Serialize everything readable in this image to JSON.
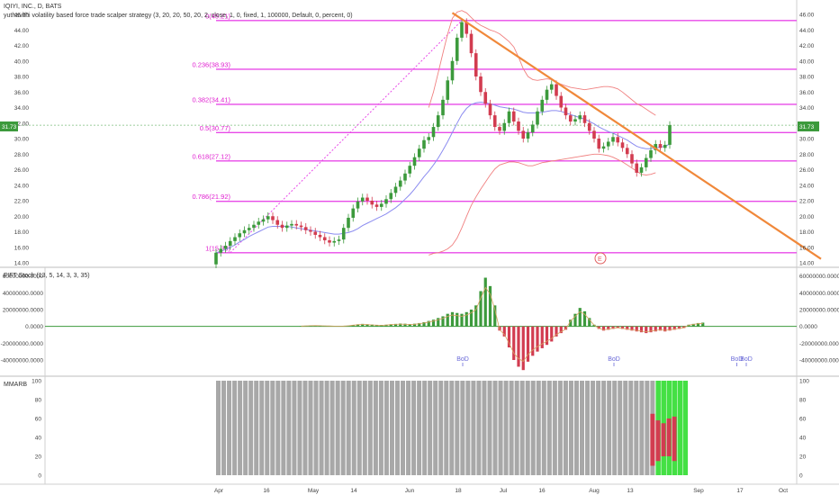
{
  "header": {
    "title": "IQIYI, INC., D, BATS",
    "strategy": "yuthavithi volatility based force trade scalper strategy (3, 20, 20, 50, 20, 2, close, 1, 0, fixed, 1, 100000, Default, 0, percent, 0)"
  },
  "price_badge": "31.73",
  "fib_labels": [
    "0(45.21)",
    "0.236(38.93)",
    "0.382(34.41)",
    "0.5(30.77)",
    "0.618(27.12)",
    "0.786(21.92)",
    "1(15.30)"
  ],
  "event_label": "E",
  "stoch_title": "FIFT Stoch (13, 5, 14, 3, 3, 35)",
  "mmarb_title": "MMARB",
  "bod_labels": [
    "BoD",
    "BoD",
    "BoD",
    "BoD"
  ],
  "colors": {
    "up": "#3c9a3c",
    "down": "#d23c50",
    "fib": "#e84ae8",
    "trend": "#f0883a",
    "ma": "#8c8cf0",
    "band": "#f08080",
    "green_zone": "#44e044",
    "gray_bar": "#a8a8a8"
  },
  "chart_data": [
    {
      "type": "candlestick",
      "title": "IQIYI, INC., D, BATS",
      "x_ticks": [
        "Apr",
        "16",
        "May",
        "14",
        "Jun",
        "18",
        "Jul",
        "16",
        "Aug",
        "13",
        "Sep",
        "17",
        "Oct"
      ],
      "y_ticks": [
        "14.00",
        "16.00",
        "18.00",
        "20.00",
        "22.00",
        "24.00",
        "26.00",
        "28.00",
        "30.00",
        "32.00",
        "34.00",
        "36.00",
        "38.00",
        "40.00",
        "42.00",
        "44.00",
        "46.00"
      ],
      "ylim": [
        14,
        46
      ],
      "fib_levels": [
        45.21,
        38.93,
        34.41,
        30.77,
        27.12,
        21.92,
        15.3
      ],
      "last_price": 31.73,
      "close": [
        15.3,
        15.8,
        16.2,
        16.8,
        17.3,
        17.8,
        18.2,
        18.5,
        18.9,
        19.3,
        19.6,
        20.0,
        19.5,
        18.9,
        18.5,
        18.8,
        19.0,
        18.8,
        18.6,
        18.2,
        18.0,
        17.6,
        17.3,
        16.9,
        16.6,
        16.8,
        17.0,
        18.5,
        19.8,
        21.0,
        21.9,
        22.4,
        22.0,
        21.5,
        21.2,
        21.6,
        22.2,
        23.0,
        23.8,
        24.6,
        25.5,
        26.5,
        27.6,
        28.7,
        29.8,
        30.2,
        31.5,
        33.0,
        35.0,
        37.5,
        40.0,
        43.0,
        45.0,
        43.5,
        41.0,
        38.0,
        36.0,
        34.5,
        33.0,
        31.5,
        31.0,
        32.0,
        33.5,
        32.2,
        31.0,
        30.0,
        30.8,
        31.8,
        33.5,
        35.0,
        36.3,
        37.0,
        35.5,
        34.0,
        33.0,
        32.2,
        32.5,
        33.0,
        32.0,
        31.0,
        30.0,
        28.7,
        29.0,
        29.6,
        30.2,
        29.5,
        28.8,
        28.0,
        26.8,
        25.6,
        26.3,
        27.5,
        28.5,
        29.3,
        28.8,
        29.2,
        31.73
      ],
      "ma": [
        15.3,
        15.5,
        15.7,
        16.0,
        16.3,
        16.7,
        17.0,
        17.4,
        17.7,
        18.0,
        18.3,
        18.6,
        18.7,
        18.7,
        18.7,
        18.7,
        18.6,
        18.5,
        18.4,
        18.3,
        18.2,
        18.1,
        18.0,
        17.9,
        17.8,
        17.7,
        17.7,
        17.8,
        17.9,
        18.1,
        18.4,
        18.8,
        19.1,
        19.4,
        19.7,
        20.0,
        20.3,
        20.7,
        21.1,
        21.6,
        22.2,
        22.8,
        23.5,
        24.3,
        25.1,
        25.8,
        26.6,
        27.5,
        28.5,
        29.6,
        30.8,
        32.0,
        33.1,
        33.9,
        34.4,
        34.6,
        34.7,
        34.6,
        34.5,
        34.3,
        34.1,
        34.0,
        33.9,
        33.8,
        33.6,
        33.4,
        33.3,
        33.3,
        33.3,
        33.4,
        33.5,
        33.6,
        33.6,
        33.5,
        33.3,
        33.1,
        32.9,
        32.7,
        32.5,
        32.2,
        31.9,
        31.5,
        31.2,
        30.9,
        30.7,
        30.4,
        30.1,
        29.8,
        29.4,
        29.0,
        28.8,
        28.7,
        28.7,
        28.8,
        28.9,
        29.0,
        29.3
      ],
      "bollinger_upper": [
        null,
        null,
        null,
        null,
        null,
        null,
        null,
        null,
        null,
        null,
        null,
        null,
        null,
        null,
        null,
        null,
        null,
        null,
        null,
        null,
        null,
        null,
        null,
        null,
        null,
        null,
        null,
        null,
        null,
        null,
        null,
        null,
        null,
        null,
        null,
        null,
        null,
        null,
        null,
        null,
        null,
        null,
        null,
        null,
        null,
        34.0,
        36.0,
        38.5,
        41.0,
        43.5,
        45.5,
        46.3,
        46.5,
        46.2,
        45.6,
        45.0,
        44.6,
        44.3,
        44.0,
        43.8,
        43.5,
        43.0,
        42.5,
        41.8,
        40.5,
        39.0,
        38.0,
        37.6,
        37.5,
        37.6,
        37.7,
        37.6,
        37.3,
        37.0,
        36.8,
        36.6,
        36.5,
        36.4,
        36.3,
        36.4,
        36.5,
        36.6,
        36.7,
        36.7,
        36.6,
        36.4,
        36.0,
        35.5,
        35.0,
        34.5,
        34.2,
        33.8,
        33.4,
        33.0,
        null,
        null,
        null
      ],
      "bollinger_lower": [
        null,
        null,
        null,
        null,
        null,
        null,
        null,
        null,
        null,
        null,
        null,
        null,
        null,
        null,
        null,
        null,
        null,
        null,
        null,
        null,
        null,
        null,
        null,
        null,
        null,
        null,
        null,
        null,
        null,
        null,
        null,
        null,
        null,
        null,
        null,
        null,
        null,
        null,
        null,
        null,
        null,
        null,
        null,
        null,
        null,
        15.0,
        15.2,
        15.3,
        15.5,
        15.8,
        16.3,
        17.2,
        18.5,
        20.0,
        21.4,
        22.5,
        23.5,
        24.4,
        25.3,
        26.1,
        26.6,
        26.8,
        27.0,
        27.0,
        26.9,
        26.7,
        26.5,
        26.5,
        26.7,
        26.9,
        27.0,
        27.1,
        27.2,
        27.3,
        27.4,
        27.5,
        27.6,
        27.7,
        27.8,
        27.9,
        28.0,
        28.0,
        27.9,
        27.8,
        27.6,
        27.3,
        27.0,
        26.6,
        26.2,
        25.8,
        25.4,
        25.3,
        25.4,
        25.6,
        null,
        null,
        null
      ],
      "trendline": [
        [
          50,
          46.2
        ],
        [
          128,
          14.5
        ]
      ],
      "xlim": [
        0,
        130
      ]
    },
    {
      "type": "bar",
      "title": "FIFT Stoch (13, 5, 14, 3, 3, 35)",
      "y_ticks": [
        "60000000.0000",
        "40000000.0000",
        "20000000.0000",
        "0.0000",
        "-20000000.0000",
        "-40000000.0000"
      ],
      "ylim": [
        -55000000,
        65000000
      ],
      "start_index": 18,
      "values": [
        500000,
        800000,
        1000000,
        1200000,
        1000000,
        800000,
        600000,
        400000,
        300000,
        500000,
        900000,
        1800000,
        2500000,
        3000000,
        2600000,
        2200000,
        1800000,
        1600000,
        2000000,
        2600000,
        3000000,
        3400000,
        3200000,
        2800000,
        3200000,
        4000000,
        5000000,
        6500000,
        8000000,
        10000000,
        12000000,
        15000000,
        17000000,
        16000000,
        15000000,
        17000000,
        20000000,
        25000000,
        42000000,
        58000000,
        48000000,
        25000000,
        -5000000,
        -12000000,
        -25000000,
        -40000000,
        -48000000,
        -52000000,
        -42000000,
        -35000000,
        -30000000,
        -26000000,
        -22000000,
        -18000000,
        -12000000,
        -8000000,
        -4000000,
        8000000,
        15000000,
        22000000,
        18000000,
        10000000,
        2000000,
        -3000000,
        -5000000,
        -4000000,
        -3000000,
        -2000000,
        -3000000,
        -4000000,
        -5000000,
        -6000000,
        -7000000,
        -8000000,
        -7000000,
        -6000000,
        -5000000,
        -6000000,
        -5000000,
        -4000000,
        -3000000,
        -2000000,
        2000000,
        3000000,
        4000000,
        4500000
      ],
      "bod_indices": [
        56,
        88,
        114,
        116
      ]
    },
    {
      "type": "bar",
      "title": "MMARB",
      "y_ticks": [
        "100",
        "80",
        "60",
        "40",
        "20",
        "0"
      ],
      "ylim": [
        0,
        100
      ],
      "gray_range": [
        34,
        114
      ],
      "green_range": [
        115,
        120
      ],
      "red_bars": [
        {
          "i": 114,
          "lo": 10,
          "hi": 65
        },
        {
          "i": 115,
          "lo": 15,
          "hi": 58
        },
        {
          "i": 116,
          "lo": 20,
          "hi": 55
        },
        {
          "i": 117,
          "lo": 20,
          "hi": 60
        },
        {
          "i": 118,
          "lo": 15,
          "hi": 62
        }
      ]
    }
  ]
}
